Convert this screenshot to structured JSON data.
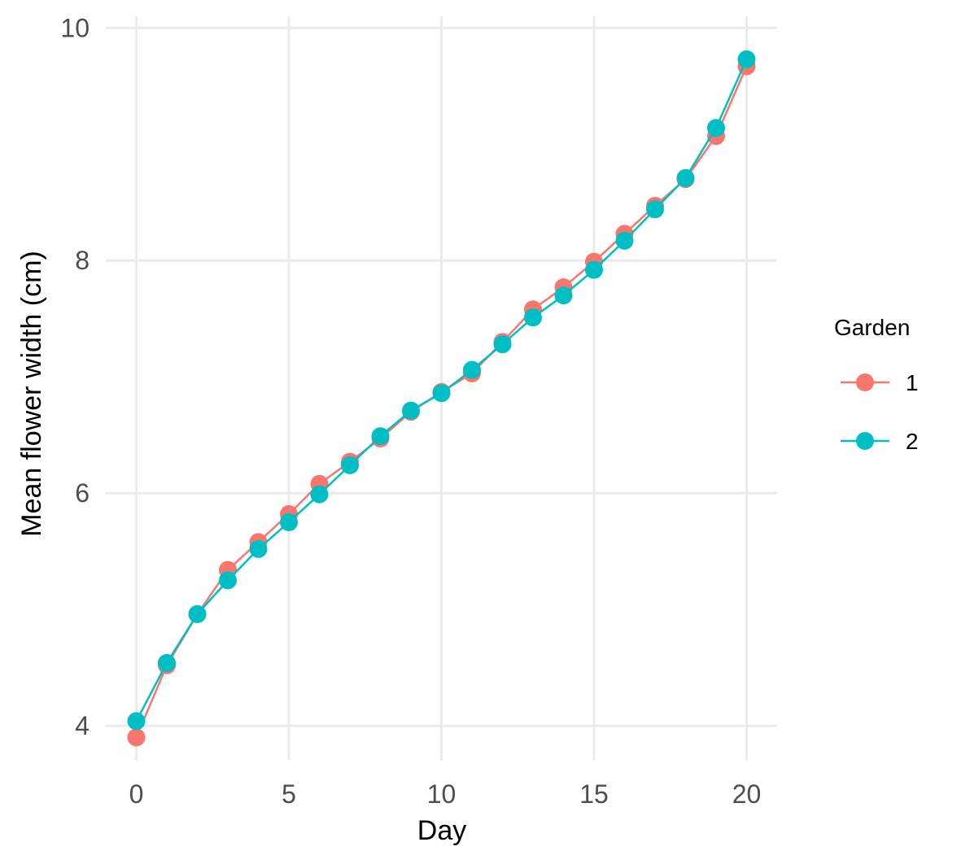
{
  "chart_data": {
    "type": "line",
    "title": "",
    "xlabel": "Day",
    "ylabel": "Mean flower width (cm)",
    "xlim": [
      -1,
      21
    ],
    "ylim": [
      3.7,
      10.1
    ],
    "x_ticks": [
      0,
      5,
      10,
      15,
      20
    ],
    "y_ticks": [
      4,
      6,
      8,
      10
    ],
    "grid": true,
    "markers": true,
    "legend": {
      "title": "Garden",
      "position": "right"
    },
    "x": [
      0,
      1,
      2,
      3,
      4,
      5,
      6,
      7,
      8,
      9,
      10,
      11,
      12,
      13,
      14,
      15,
      16,
      17,
      18,
      19,
      20
    ],
    "series": [
      {
        "name": "1",
        "color": "#F8766D",
        "values": [
          3.9,
          4.52,
          4.96,
          5.34,
          5.58,
          5.82,
          6.08,
          6.27,
          6.47,
          6.7,
          6.87,
          7.03,
          7.3,
          7.58,
          7.77,
          7.99,
          8.23,
          8.47,
          8.7,
          9.07,
          9.67
        ]
      },
      {
        "name": "2",
        "color": "#00BFC4",
        "values": [
          4.04,
          4.54,
          4.96,
          5.25,
          5.52,
          5.75,
          5.99,
          6.24,
          6.49,
          6.71,
          6.86,
          7.06,
          7.28,
          7.51,
          7.7,
          7.92,
          8.17,
          8.44,
          8.71,
          9.14,
          9.73
        ]
      }
    ]
  }
}
